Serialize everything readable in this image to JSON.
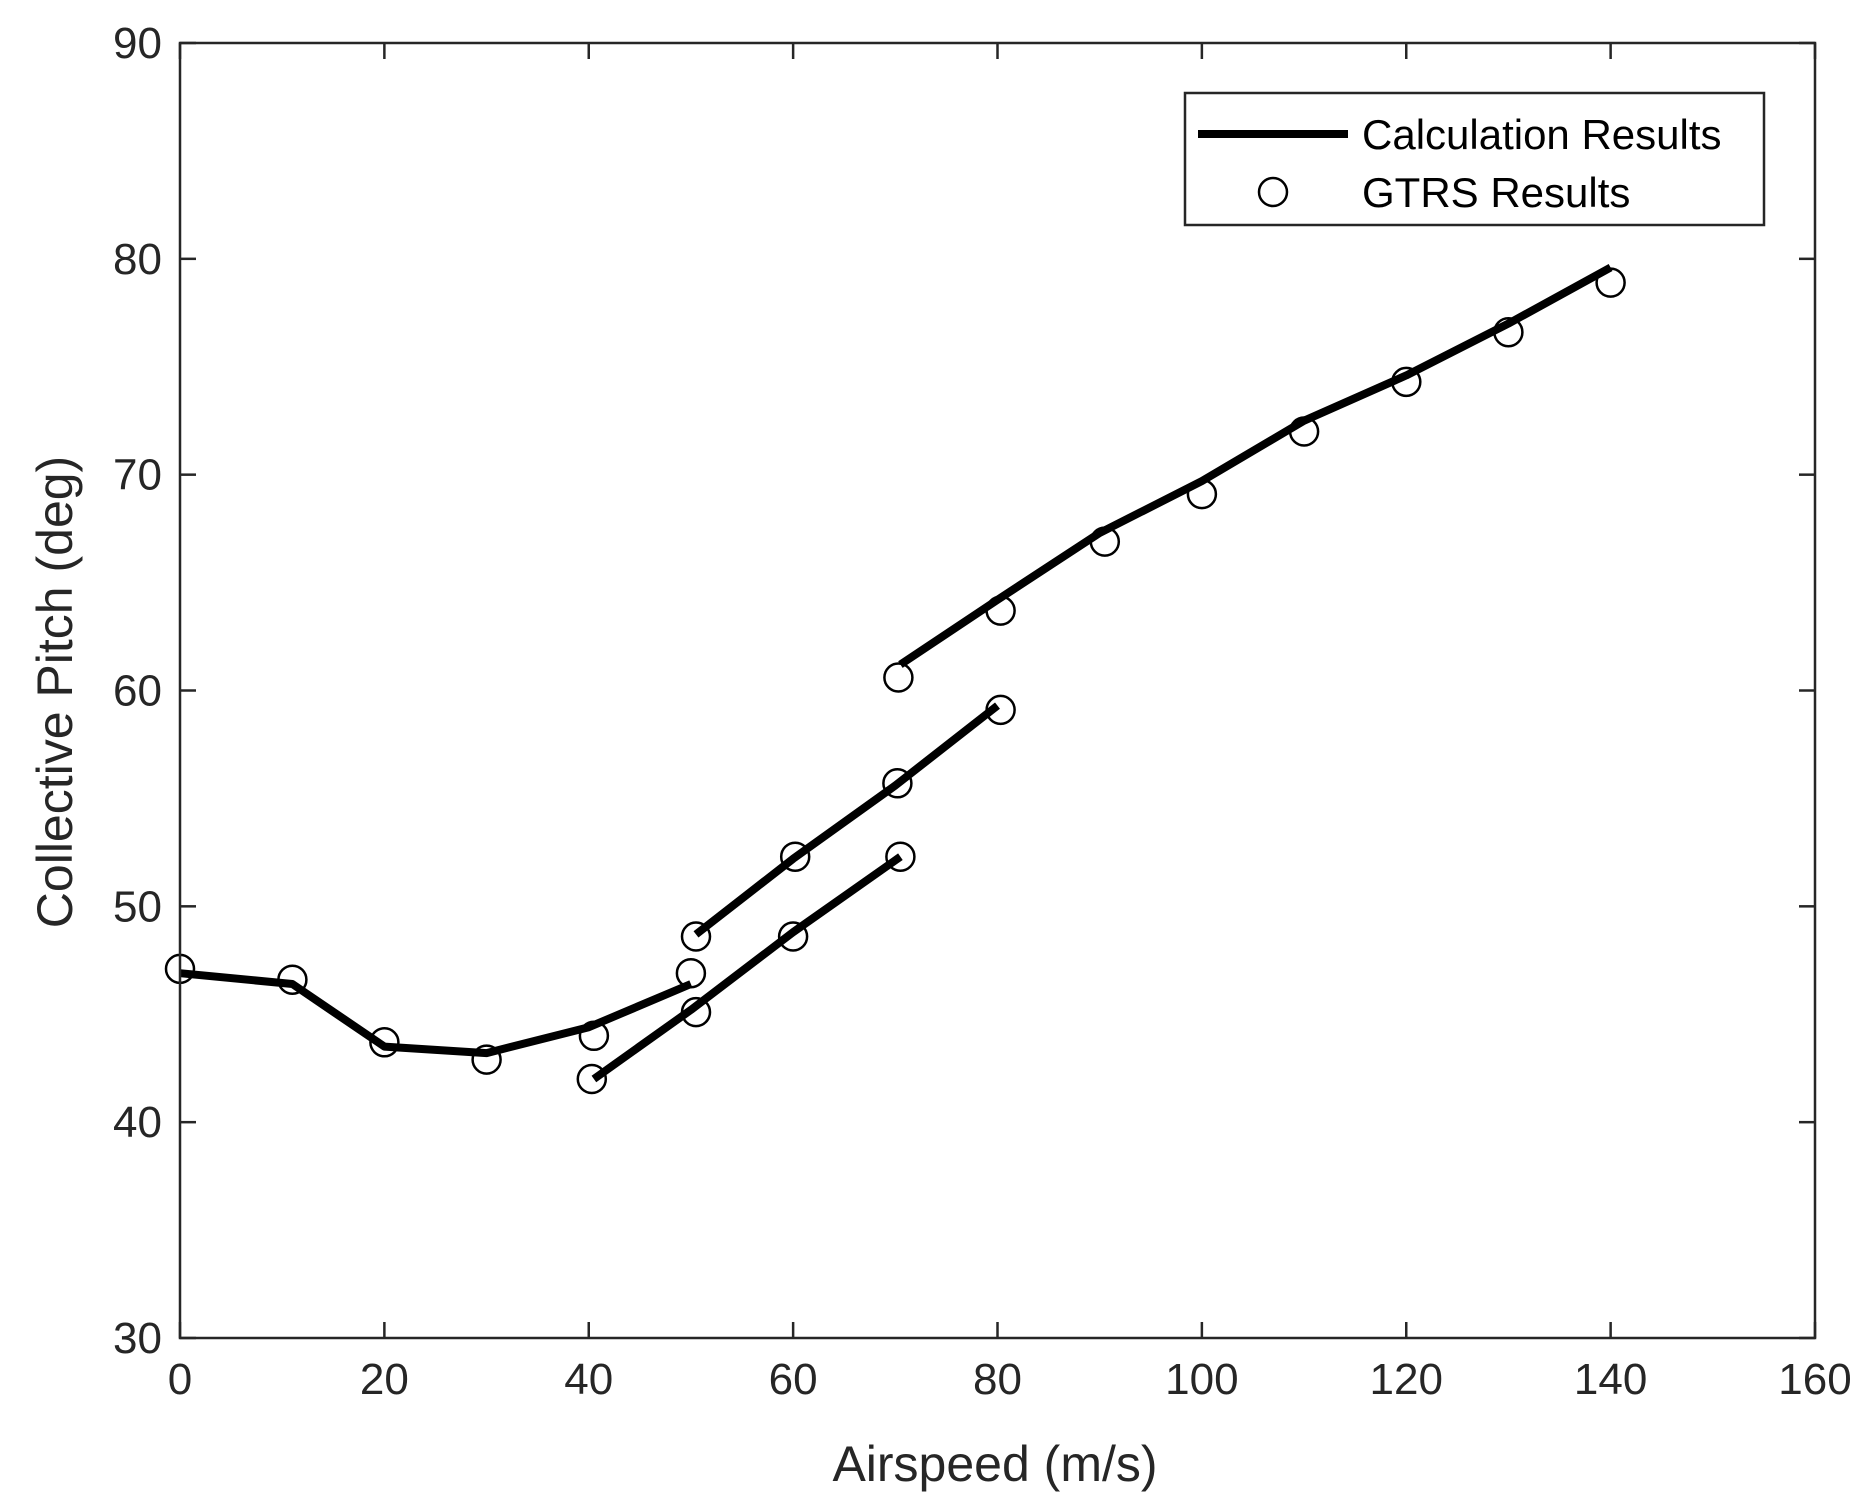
{
  "chart_data": {
    "type": "line",
    "title": "",
    "xlabel": "Airspeed (m/s)",
    "ylabel": "Collective Pitch (deg)",
    "xlim": [
      0,
      160
    ],
    "ylim": [
      30,
      90
    ],
    "xticks": [
      0,
      20,
      40,
      60,
      80,
      100,
      120,
      140,
      160
    ],
    "yticks": [
      30,
      40,
      50,
      60,
      70,
      80,
      90
    ],
    "grid": false,
    "legend_position": "top-right",
    "legend": [
      {
        "label": "Calculation Results",
        "style": "line"
      },
      {
        "label": "GTRS Results",
        "style": "circle"
      }
    ],
    "colors": {
      "line": "#000000",
      "marker": "#000000",
      "axis": "#262626",
      "background": "#ffffff"
    },
    "series": [
      {
        "name": "Calculation Results",
        "style": "line",
        "x": [
          0,
          11,
          20,
          30,
          40,
          50
        ],
        "y": [
          46.9,
          46.4,
          43.5,
          43.2,
          44.4,
          46.4
        ]
      },
      {
        "name": "Calculation Results",
        "style": "line",
        "x": [
          40.5,
          50,
          60,
          70.5
        ],
        "y": [
          42.0,
          45.2,
          48.8,
          52.3
        ]
      },
      {
        "name": "Calculation Results",
        "style": "line",
        "x": [
          50.5,
          60,
          70,
          80
        ],
        "y": [
          48.7,
          52.2,
          55.6,
          59.3
        ]
      },
      {
        "name": "Calculation Results",
        "style": "line",
        "x": [
          70.5,
          80,
          90,
          100,
          110,
          120,
          130,
          140
        ],
        "y": [
          61.2,
          64.2,
          67.3,
          69.7,
          72.5,
          74.6,
          77.0,
          79.6
        ]
      },
      {
        "name": "GTRS Results",
        "style": "circle",
        "x": [
          0,
          11,
          20,
          30,
          40.5,
          50,
          40.3,
          50.5,
          60,
          70.5,
          50.5,
          60.2,
          70.2,
          80.3,
          70.3,
          80.3,
          90.5,
          100,
          110,
          120,
          130,
          140
        ],
        "y": [
          47.1,
          46.6,
          43.7,
          42.9,
          44.0,
          46.9,
          42.0,
          45.1,
          48.6,
          52.3,
          48.6,
          52.3,
          55.7,
          59.1,
          60.6,
          63.7,
          66.9,
          69.1,
          72.0,
          74.3,
          76.6,
          78.9
        ]
      }
    ]
  }
}
